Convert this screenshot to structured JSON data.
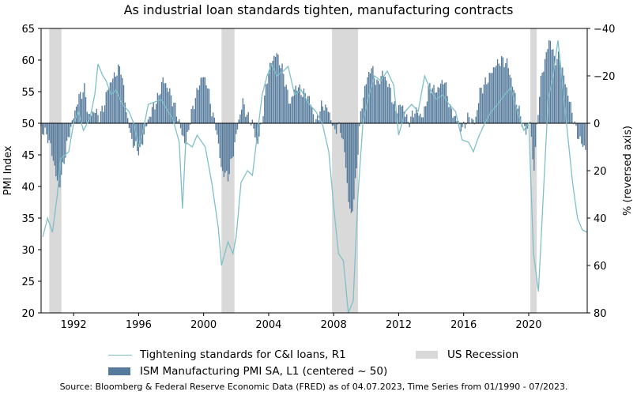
{
  "chart_data": {
    "type": "bar+line",
    "title": "As industrial loan standards tighten, manufacturing contracts",
    "source": "Source: Bloomberg & Federal Reserve Economic Data (FRED) as of 04.07.2023, Time Series from 01/1990 - 07/2023.",
    "x_range": [
      1990.0,
      2023.6
    ],
    "x_ticks": [
      "1992",
      "1996",
      "2000",
      "2004",
      "2008",
      "2012",
      "2016",
      "2020"
    ],
    "y_left": {
      "label": "PMI Index",
      "range": [
        20,
        65
      ],
      "ticks": [
        "20",
        "25",
        "30",
        "35",
        "40",
        "45",
        "50",
        "55",
        "60",
        "65"
      ]
    },
    "y_right": {
      "label": "% (reversed axis)",
      "range": [
        -40,
        80
      ],
      "reversed": true,
      "ticks": [
        "−40",
        "−20",
        "0",
        "20",
        "40",
        "60",
        "80"
      ]
    },
    "legend": {
      "line": "Tightening standards for C&I loans, R1",
      "bars": "ISM Manufacturing PMI SA, L1 (centered ~ 50)",
      "recession": "US Recession"
    },
    "colors": {
      "bars": "#557a9c",
      "line": "#7fc0c8",
      "recession": "#d9d9d9"
    },
    "recessions": [
      [
        1990.5,
        1991.25
      ],
      [
        2001.1,
        2001.9
      ],
      [
        2007.9,
        2009.5
      ],
      [
        2020.1,
        2020.5
      ]
    ],
    "pmi_series": {
      "name": "ISM Manufacturing PMI SA, L1 (centered ~ 50)",
      "points": [
        [
          1990.0,
          49.0
        ],
        [
          1990.4,
          48.0
        ],
        [
          1990.7,
          45.0
        ],
        [
          1990.9,
          42.0
        ],
        [
          1991.1,
          39.5
        ],
        [
          1991.3,
          42.5
        ],
        [
          1991.7,
          48.0
        ],
        [
          1992.0,
          51.0
        ],
        [
          1992.3,
          54.0
        ],
        [
          1992.7,
          55.5
        ],
        [
          1992.9,
          51.0
        ],
        [
          1993.3,
          52.0
        ],
        [
          1993.6,
          51.0
        ],
        [
          1993.9,
          53.0
        ],
        [
          1994.1,
          55.5
        ],
        [
          1994.5,
          57.5
        ],
        [
          1994.9,
          59.0
        ],
        [
          1995.1,
          55.0
        ],
        [
          1995.3,
          51.0
        ],
        [
          1995.6,
          47.0
        ],
        [
          1995.9,
          46.0
        ],
        [
          1996.1,
          45.5
        ],
        [
          1996.4,
          49.0
        ],
        [
          1996.8,
          52.0
        ],
        [
          1997.2,
          54.0
        ],
        [
          1997.5,
          57.0
        ],
        [
          1997.9,
          55.0
        ],
        [
          1998.3,
          52.0
        ],
        [
          1998.6,
          49.0
        ],
        [
          1998.9,
          46.5
        ],
        [
          1999.2,
          51.0
        ],
        [
          1999.6,
          55.0
        ],
        [
          1999.9,
          57.5
        ],
        [
          2000.2,
          56.5
        ],
        [
          2000.5,
          52.0
        ],
        [
          2000.8,
          49.0
        ],
        [
          2001.1,
          42.5
        ],
        [
          2001.5,
          41.5
        ],
        [
          2001.8,
          45.0
        ],
        [
          2002.1,
          49.5
        ],
        [
          2002.4,
          53.5
        ],
        [
          2002.7,
          51.0
        ],
        [
          2003.0,
          50.0
        ],
        [
          2003.3,
          46.5
        ],
        [
          2003.6,
          50.5
        ],
        [
          2003.9,
          57.0
        ],
        [
          2004.2,
          60.0
        ],
        [
          2004.5,
          61.0
        ],
        [
          2004.9,
          58.0
        ],
        [
          2005.3,
          53.0
        ],
        [
          2005.7,
          56.0
        ],
        [
          2006.0,
          55.0
        ],
        [
          2006.5,
          54.0
        ],
        [
          2006.9,
          50.0
        ],
        [
          2007.3,
          53.0
        ],
        [
          2007.7,
          52.0
        ],
        [
          2008.0,
          49.0
        ],
        [
          2008.4,
          49.5
        ],
        [
          2008.7,
          45.0
        ],
        [
          2008.9,
          38.0
        ],
        [
          2009.1,
          35.0
        ],
        [
          2009.4,
          42.0
        ],
        [
          2009.6,
          50.0
        ],
        [
          2009.9,
          55.5
        ],
        [
          2010.3,
          59.0
        ],
        [
          2010.7,
          56.0
        ],
        [
          2011.0,
          58.0
        ],
        [
          2011.4,
          56.0
        ],
        [
          2011.8,
          52.0
        ],
        [
          2012.2,
          53.0
        ],
        [
          2012.6,
          50.0
        ],
        [
          2013.0,
          52.0
        ],
        [
          2013.5,
          51.0
        ],
        [
          2013.9,
          56.0
        ],
        [
          2014.3,
          55.0
        ],
        [
          2014.8,
          57.0
        ],
        [
          2015.2,
          52.0
        ],
        [
          2015.6,
          50.5
        ],
        [
          2015.9,
          49.0
        ],
        [
          2016.3,
          51.0
        ],
        [
          2016.7,
          50.0
        ],
        [
          2017.0,
          55.0
        ],
        [
          2017.5,
          57.0
        ],
        [
          2017.9,
          59.0
        ],
        [
          2018.3,
          60.0
        ],
        [
          2018.7,
          59.5
        ],
        [
          2019.0,
          56.0
        ],
        [
          2019.4,
          52.0
        ],
        [
          2019.8,
          48.5
        ],
        [
          2020.1,
          50.5
        ],
        [
          2020.3,
          42.0
        ],
        [
          2020.5,
          49.0
        ],
        [
          2020.7,
          56.0
        ],
        [
          2021.0,
          60.0
        ],
        [
          2021.3,
          63.5
        ],
        [
          2021.6,
          60.0
        ],
        [
          2021.9,
          60.5
        ],
        [
          2022.2,
          57.0
        ],
        [
          2022.6,
          52.5
        ],
        [
          2022.9,
          49.0
        ],
        [
          2023.2,
          47.0
        ],
        [
          2023.5,
          46.0
        ]
      ]
    },
    "loan_series": {
      "name": "Tightening standards for C&I loans, R1",
      "points": [
        [
          1990.1,
          48
        ],
        [
          1990.4,
          40
        ],
        [
          1990.7,
          46
        ],
        [
          1991.0,
          30
        ],
        [
          1991.2,
          15
        ],
        [
          1991.7,
          12
        ],
        [
          1992.0,
          0
        ],
        [
          1992.3,
          -5
        ],
        [
          1992.6,
          3
        ],
        [
          1993.0,
          -2
        ],
        [
          1993.3,
          -12
        ],
        [
          1993.5,
          -25
        ],
        [
          1993.8,
          -20
        ],
        [
          1994.0,
          -18
        ],
        [
          1994.3,
          -12
        ],
        [
          1994.6,
          -14
        ],
        [
          1995.0,
          -8
        ],
        [
          1995.4,
          -5
        ],
        [
          1995.7,
          0
        ],
        [
          1996.0,
          10
        ],
        [
          1996.3,
          2
        ],
        [
          1996.6,
          -8
        ],
        [
          1997.0,
          -9
        ],
        [
          1997.4,
          -10
        ],
        [
          1997.8,
          -5
        ],
        [
          1998.1,
          -2
        ],
        [
          1998.5,
          8
        ],
        [
          1998.7,
          36
        ],
        [
          1998.9,
          8
        ],
        [
          1999.3,
          10
        ],
        [
          1999.6,
          5
        ],
        [
          2000.1,
          10
        ],
        [
          2000.5,
          25
        ],
        [
          2000.9,
          44
        ],
        [
          2001.1,
          60
        ],
        [
          2001.5,
          50
        ],
        [
          2001.8,
          55
        ],
        [
          2002.0,
          48
        ],
        [
          2002.3,
          25
        ],
        [
          2002.7,
          20
        ],
        [
          2003.0,
          22
        ],
        [
          2003.3,
          5
        ],
        [
          2003.6,
          -12
        ],
        [
          2003.9,
          -20
        ],
        [
          2004.2,
          -25
        ],
        [
          2004.5,
          -20
        ],
        [
          2004.9,
          -22
        ],
        [
          2005.2,
          -24
        ],
        [
          2005.6,
          -12
        ],
        [
          2006.0,
          -14
        ],
        [
          2006.5,
          -8
        ],
        [
          2006.9,
          -5
        ],
        [
          2007.3,
          0
        ],
        [
          2007.7,
          12
        ],
        [
          2008.0,
          35
        ],
        [
          2008.3,
          55
        ],
        [
          2008.6,
          58
        ],
        [
          2008.9,
          80
        ],
        [
          2009.2,
          75
        ],
        [
          2009.5,
          30
        ],
        [
          2009.8,
          0
        ],
        [
          2010.1,
          -10
        ],
        [
          2010.5,
          -20
        ],
        [
          2010.9,
          -18
        ],
        [
          2011.3,
          -22
        ],
        [
          2011.7,
          -16
        ],
        [
          2012.0,
          5
        ],
        [
          2012.4,
          -5
        ],
        [
          2012.8,
          -8
        ],
        [
          2013.2,
          -5
        ],
        [
          2013.6,
          -20
        ],
        [
          2013.9,
          -15
        ],
        [
          2014.3,
          -10
        ],
        [
          2014.7,
          -12
        ],
        [
          2015.1,
          -8
        ],
        [
          2015.5,
          -5
        ],
        [
          2015.9,
          7
        ],
        [
          2016.3,
          8
        ],
        [
          2016.6,
          12
        ],
        [
          2016.9,
          6
        ],
        [
          2017.3,
          0
        ],
        [
          2017.7,
          -5
        ],
        [
          2018.1,
          -8
        ],
        [
          2018.5,
          -12
        ],
        [
          2018.9,
          -15
        ],
        [
          2019.3,
          -5
        ],
        [
          2019.7,
          3
        ],
        [
          2020.0,
          0
        ],
        [
          2020.3,
          55
        ],
        [
          2020.6,
          71
        ],
        [
          2020.9,
          30
        ],
        [
          2021.2,
          -10
        ],
        [
          2021.5,
          -20
        ],
        [
          2021.8,
          -35
        ],
        [
          2022.1,
          -15
        ],
        [
          2022.4,
          5
        ],
        [
          2022.7,
          25
        ],
        [
          2023.0,
          40
        ],
        [
          2023.3,
          45
        ],
        [
          2023.6,
          46
        ]
      ]
    }
  }
}
